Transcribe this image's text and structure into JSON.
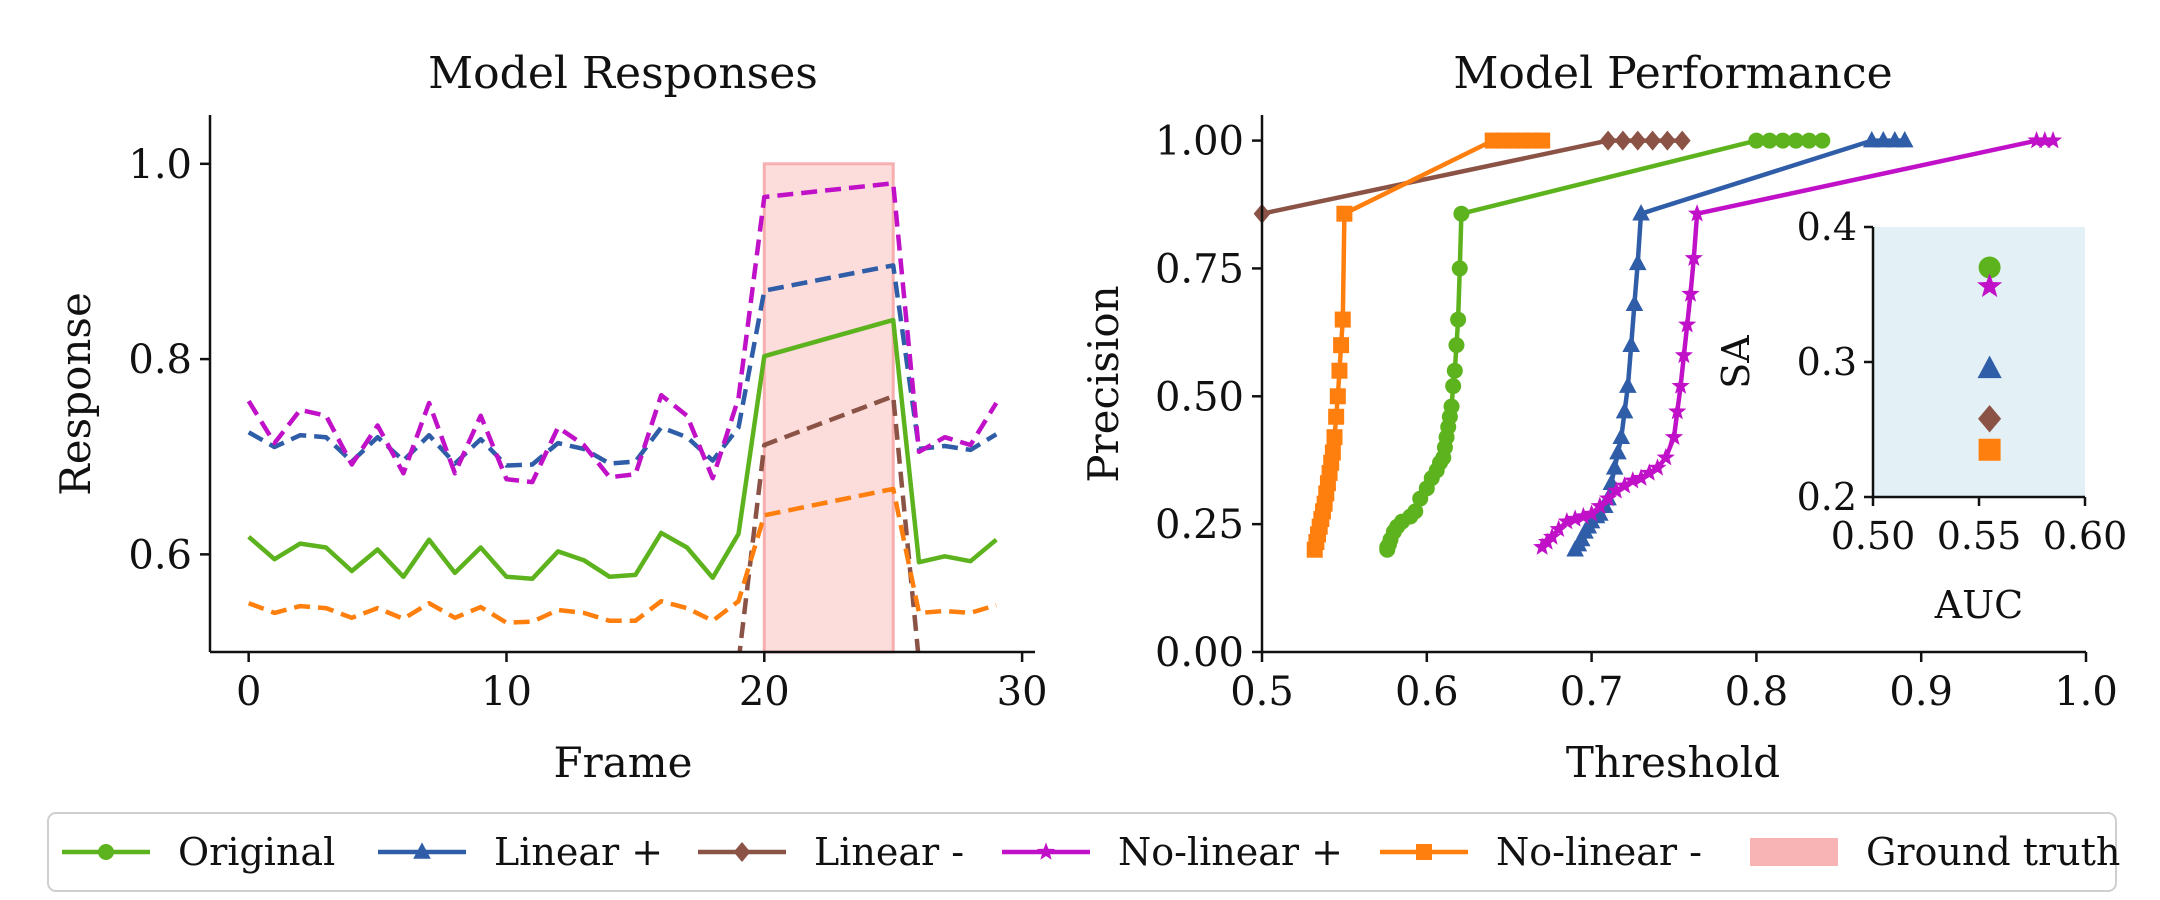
{
  "colors": {
    "original": "#5DB31E",
    "linear_plus": "#2F5DA8",
    "linear_minus": "#8B5346",
    "nonlinear_plus": "#C011C8",
    "nonlinear_minus": "#FF7F0E",
    "ground_truth": "#F8B4B4",
    "inset_bg": "#E3F1F6"
  },
  "chart_data": [
    {
      "type": "line",
      "title": "Model Responses",
      "xlabel": "Frame",
      "ylabel": "Response",
      "xlim": [
        -1.5,
        30.5
      ],
      "ylim": [
        0.5,
        1.05
      ],
      "xticks": [
        0,
        10,
        20,
        30
      ],
      "yticks": [
        0.6,
        0.8,
        1.0
      ],
      "ground_truth_span": [
        20,
        25
      ],
      "x": [
        0,
        1,
        2,
        3,
        4,
        5,
        6,
        7,
        8,
        9,
        10,
        11,
        12,
        13,
        14,
        15,
        16,
        17,
        18,
        19,
        20,
        25,
        26,
        27,
        28,
        29
      ],
      "series": [
        {
          "name": "Original",
          "key": "original",
          "dash": "solid",
          "values": [
            0.618,
            0.595,
            0.611,
            0.607,
            0.583,
            0.605,
            0.577,
            0.615,
            0.581,
            0.607,
            0.577,
            0.575,
            0.603,
            0.594,
            0.577,
            0.579,
            0.622,
            0.607,
            0.576,
            0.621,
            0.803,
            0.84,
            0.592,
            0.598,
            0.593,
            0.615
          ]
        },
        {
          "name": "Linear +",
          "key": "linear_plus",
          "dash": "dashed",
          "values": [
            0.725,
            0.71,
            0.722,
            0.72,
            0.695,
            0.72,
            0.696,
            0.722,
            0.693,
            0.718,
            0.691,
            0.692,
            0.714,
            0.708,
            0.693,
            0.695,
            0.73,
            0.72,
            0.696,
            0.73,
            0.87,
            0.896,
            0.708,
            0.711,
            0.707,
            0.723
          ]
        },
        {
          "name": "Linear -",
          "key": "linear_minus",
          "dash": "dashed",
          "values": [
            null,
            null,
            null,
            null,
            null,
            null,
            null,
            null,
            null,
            null,
            null,
            null,
            null,
            null,
            null,
            null,
            null,
            null,
            null,
            0.49,
            0.712,
            0.762,
            0.49,
            null,
            null,
            null
          ]
        },
        {
          "name": "No-linear +",
          "key": "nonlinear_plus",
          "dash": "dashed",
          "values": [
            0.757,
            0.714,
            0.748,
            0.742,
            0.692,
            0.732,
            0.683,
            0.755,
            0.683,
            0.742,
            0.677,
            0.674,
            0.73,
            0.712,
            0.679,
            0.682,
            0.763,
            0.742,
            0.678,
            0.76,
            0.966,
            0.98,
            0.705,
            0.72,
            0.712,
            0.755
          ]
        },
        {
          "name": "No-linear -",
          "key": "nonlinear_minus",
          "dash": "dashed",
          "values": [
            0.55,
            0.54,
            0.547,
            0.545,
            0.535,
            0.545,
            0.534,
            0.55,
            0.535,
            0.546,
            0.53,
            0.531,
            0.543,
            0.54,
            0.532,
            0.532,
            0.552,
            0.545,
            0.532,
            0.552,
            0.64,
            0.667,
            0.54,
            0.542,
            0.54,
            0.548
          ]
        }
      ]
    },
    {
      "type": "line",
      "title": "Model Performance",
      "xlabel": "Threshold",
      "ylabel": "Precision",
      "xlim": [
        0.5,
        1.0
      ],
      "ylim": [
        0.0,
        1.05
      ],
      "xticks": [
        0.5,
        0.6,
        0.7,
        0.8,
        0.9,
        1.0
      ],
      "xticklabels": [
        "0.5",
        "0.6",
        "0.7",
        "0.8",
        "0.9",
        "1.0"
      ],
      "yticks": [
        0.0,
        0.25,
        0.5,
        0.75,
        1.0
      ],
      "yticklabels": [
        "0.00",
        "0.25",
        "0.50",
        "0.75",
        "1.00"
      ],
      "series": [
        {
          "name": "Original",
          "key": "original",
          "marker": "circle",
          "x": [
            0.576,
            0.576,
            0.577,
            0.578,
            0.58,
            0.582,
            0.585,
            0.59,
            0.593,
            0.596,
            0.6,
            0.603,
            0.606,
            0.608,
            0.61,
            0.611,
            0.612,
            0.613,
            0.614,
            0.615,
            0.616,
            0.617,
            0.618,
            0.619,
            0.62,
            0.621,
            0.8,
            0.808,
            0.816,
            0.824,
            0.832,
            0.84
          ],
          "y": [
            0.2,
            0.205,
            0.21,
            0.22,
            0.235,
            0.245,
            0.255,
            0.265,
            0.275,
            0.3,
            0.32,
            0.34,
            0.355,
            0.37,
            0.38,
            0.4,
            0.42,
            0.44,
            0.46,
            0.48,
            0.52,
            0.55,
            0.6,
            0.65,
            0.75,
            0.857,
            1.0,
            1.0,
            1.0,
            1.0,
            1.0,
            1.0
          ]
        },
        {
          "name": "Linear +",
          "key": "linear_plus",
          "marker": "triangle",
          "x": [
            0.69,
            0.692,
            0.694,
            0.696,
            0.698,
            0.7,
            0.703,
            0.705,
            0.708,
            0.71,
            0.712,
            0.714,
            0.716,
            0.718,
            0.72,
            0.722,
            0.724,
            0.726,
            0.728,
            0.73,
            0.87,
            0.877,
            0.884,
            0.89
          ],
          "y": [
            0.2,
            0.21,
            0.22,
            0.235,
            0.245,
            0.255,
            0.265,
            0.27,
            0.285,
            0.3,
            0.33,
            0.36,
            0.39,
            0.42,
            0.47,
            0.52,
            0.6,
            0.68,
            0.76,
            0.857,
            1.0,
            1.0,
            1.0,
            1.0
          ]
        },
        {
          "name": "Linear -",
          "key": "linear_minus",
          "marker": "diamond",
          "x": [
            0.5,
            0.71,
            0.719,
            0.728,
            0.737,
            0.746,
            0.755
          ],
          "y": [
            0.857,
            1.0,
            1.0,
            1.0,
            1.0,
            1.0,
            1.0
          ]
        },
        {
          "name": "No-linear +",
          "key": "nonlinear_plus",
          "marker": "star",
          "x": [
            0.67,
            0.673,
            0.676,
            0.68,
            0.685,
            0.69,
            0.695,
            0.7,
            0.705,
            0.71,
            0.715,
            0.72,
            0.725,
            0.73,
            0.735,
            0.74,
            0.745,
            0.75,
            0.752,
            0.754,
            0.756,
            0.758,
            0.76,
            0.762,
            0.764,
            0.97,
            0.975,
            0.98
          ],
          "y": [
            0.205,
            0.215,
            0.225,
            0.24,
            0.255,
            0.26,
            0.265,
            0.27,
            0.285,
            0.3,
            0.315,
            0.325,
            0.335,
            0.34,
            0.35,
            0.36,
            0.38,
            0.42,
            0.47,
            0.52,
            0.58,
            0.64,
            0.7,
            0.77,
            0.857,
            1.0,
            1.0,
            1.0
          ]
        },
        {
          "name": "No-linear -",
          "key": "nonlinear_minus",
          "marker": "square",
          "x": [
            0.532,
            0.533,
            0.534,
            0.535,
            0.536,
            0.537,
            0.538,
            0.539,
            0.54,
            0.541,
            0.542,
            0.543,
            0.544,
            0.545,
            0.546,
            0.547,
            0.548,
            0.549,
            0.55,
            0.64,
            0.646,
            0.652,
            0.658,
            0.664,
            0.67
          ],
          "y": [
            0.2,
            0.215,
            0.23,
            0.245,
            0.26,
            0.275,
            0.29,
            0.31,
            0.33,
            0.35,
            0.37,
            0.39,
            0.42,
            0.46,
            0.5,
            0.55,
            0.6,
            0.65,
            0.857,
            1.0,
            1.0,
            1.0,
            1.0,
            1.0,
            1.0
          ]
        }
      ]
    },
    {
      "type": "scatter",
      "inset": true,
      "xlabel": "AUC",
      "ylabel": "SA",
      "xlim": [
        0.5,
        0.6
      ],
      "ylim": [
        0.2,
        0.4
      ],
      "xticks": [
        0.5,
        0.55,
        0.6
      ],
      "xticklabels": [
        "0.50",
        "0.55",
        "0.60"
      ],
      "yticks": [
        0.2,
        0.3,
        0.4
      ],
      "yticklabels": [
        "0.2",
        "0.3",
        "0.4"
      ],
      "points": [
        {
          "name": "Original",
          "key": "original",
          "marker": "circle",
          "x": 0.555,
          "y": 0.37
        },
        {
          "name": "No-linear +",
          "key": "nonlinear_plus",
          "marker": "star",
          "x": 0.555,
          "y": 0.356
        },
        {
          "name": "Linear +",
          "key": "linear_plus",
          "marker": "triangle",
          "x": 0.555,
          "y": 0.295
        },
        {
          "name": "Linear -",
          "key": "linear_minus",
          "marker": "diamond",
          "x": 0.555,
          "y": 0.258
        },
        {
          "name": "No-linear -",
          "key": "nonlinear_minus",
          "marker": "square",
          "x": 0.555,
          "y": 0.235
        }
      ]
    }
  ],
  "legend": {
    "placement": "bottom",
    "items": [
      {
        "label": "Original",
        "key": "original",
        "marker": "circle"
      },
      {
        "label": "Linear +",
        "key": "linear_plus",
        "marker": "triangle"
      },
      {
        "label": "Linear -",
        "key": "linear_minus",
        "marker": "diamond"
      },
      {
        "label": "No-linear +",
        "key": "nonlinear_plus",
        "marker": "star"
      },
      {
        "label": "No-linear -",
        "key": "nonlinear_minus",
        "marker": "square"
      },
      {
        "label": "Ground truth",
        "key": "ground_truth",
        "marker": "patch"
      }
    ]
  }
}
